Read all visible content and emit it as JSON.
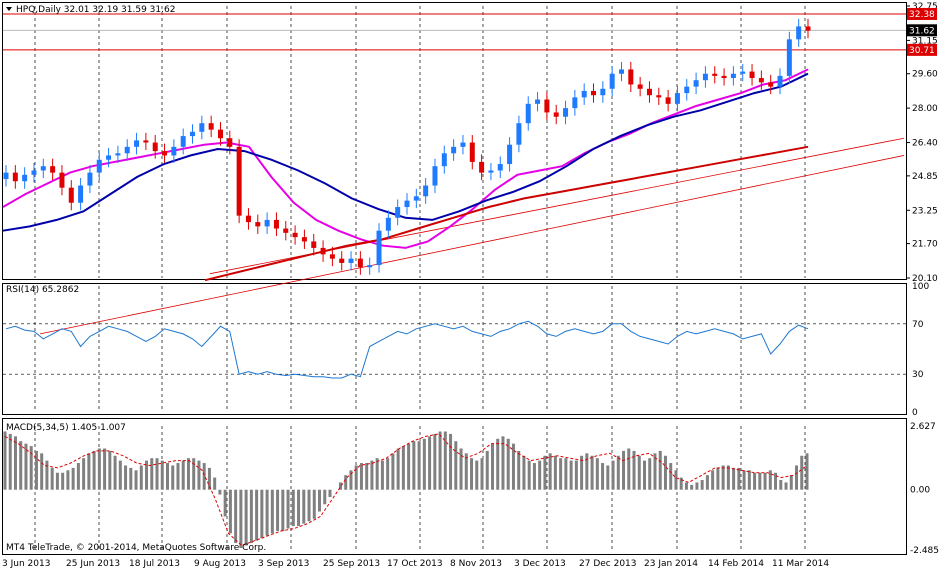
{
  "main": {
    "header": "HPQ,Daily  32.01 32.19 31.59 31.62",
    "y_ticks": [
      "32.75",
      "31.15",
      "29.60",
      "28.00",
      "26.40",
      "24.85",
      "23.25",
      "21.70",
      "20.10"
    ],
    "price_tags": [
      "32.38",
      "31.62",
      "30.71"
    ],
    "tag_colors": [
      "#dd0000",
      "#000000",
      "#dd0000"
    ]
  },
  "rsi": {
    "header": "RSI(14) 65.2862",
    "ticks": [
      "100",
      "70",
      "30",
      "0"
    ]
  },
  "macd": {
    "header": "MACD(5,34,5) 1.405 1.007",
    "ticks": [
      "2.627",
      "0.00",
      "-2.485"
    ]
  },
  "x_labels": [
    "3 Jun 2013",
    "25 Jun 2013",
    "18 Jul 2013",
    "9 Aug 2013",
    "3 Sep 2013",
    "25 Sep 2013",
    "17 Oct 2013",
    "8 Nov 2013",
    "3 Dec 2013",
    "27 Dec 2013",
    "23 Jan 2014",
    "14 Feb 2014",
    "11 Mar 2014"
  ],
  "copyright": "MT4 TeleTrade, © 2001-2014, MetaQuotes Software Corp.",
  "colors": {
    "up": "#1e7bff",
    "down": "#e00000",
    "ma_fast": "#e600e6",
    "ma_mid": "#0000aa",
    "ma_slow": "#cc0000",
    "rsi": "#1e78d0",
    "macd_bar": "#808080",
    "signal": "#dd0000"
  },
  "chart_data": [
    {
      "type": "candlestick",
      "title": "HPQ,Daily",
      "ylim": [
        20.1,
        32.75
      ],
      "x_ticks": [
        "3 Jun 2013",
        "25 Jun 2013",
        "18 Jul 2013",
        "9 Aug 2013",
        "3 Sep 2013",
        "25 Sep 2013",
        "17 Oct 2013",
        "8 Nov 2013",
        "3 Dec 2013",
        "27 Dec 2013",
        "23 Jan 2014",
        "14 Feb 2014",
        "11 Mar 2014"
      ],
      "close_path": [
        25.0,
        24.6,
        24.9,
        25.1,
        25.3,
        25.0,
        24.3,
        23.6,
        24.4,
        25.0,
        25.6,
        25.8,
        25.9,
        26.2,
        26.5,
        26.4,
        26.0,
        25.8,
        26.2,
        26.7,
        26.9,
        27.3,
        27.0,
        26.6,
        26.2,
        23.0,
        22.7,
        22.5,
        22.8,
        22.4,
        22.2,
        22.0,
        21.8,
        21.5,
        21.2,
        21.0,
        20.8,
        21.0,
        20.6,
        20.7,
        22.3,
        22.9,
        23.4,
        23.7,
        23.9,
        24.4,
        25.3,
        25.9,
        26.2,
        26.4,
        25.5,
        25.0,
        25.1,
        25.4,
        26.3,
        27.3,
        28.2,
        28.4,
        27.8,
        27.6,
        28.0,
        28.5,
        28.8,
        28.6,
        28.9,
        29.6,
        29.8,
        29.1,
        28.9,
        28.6,
        28.5,
        28.2,
        28.7,
        29.0,
        29.3,
        29.6,
        29.5,
        29.4,
        29.6,
        29.7,
        29.4,
        29.2,
        29.0,
        29.5,
        31.2,
        31.8,
        31.6
      ],
      "levels": [
        32.38,
        30.71
      ],
      "current": 31.62,
      "moving_averages": [
        {
          "name": "",
          "color": "#e600e6",
          "values": [
            23.4,
            24.0,
            24.5,
            25.0,
            25.3,
            25.5,
            25.7,
            25.9,
            26.1,
            26.3,
            26.4,
            26.2,
            24.8,
            23.6,
            22.8,
            22.3,
            21.9,
            21.6,
            21.5,
            21.8,
            22.5,
            23.3,
            24.2,
            24.9,
            25.1,
            25.3,
            25.9,
            26.4,
            26.8,
            27.3,
            27.7,
            28.1,
            28.4,
            28.7,
            29.1,
            29.3,
            29.8
          ]
        },
        {
          "name": "",
          "color": "#0000aa",
          "values": [
            22.3,
            22.5,
            22.8,
            23.2,
            24.0,
            24.8,
            25.4,
            25.8,
            26.1,
            26.0,
            25.6,
            25.1,
            24.5,
            23.8,
            23.3,
            22.9,
            22.8,
            23.2,
            23.7,
            24.1,
            24.6,
            25.3,
            26.1,
            26.7,
            27.2,
            27.6,
            27.9,
            28.3,
            28.7,
            29.0,
            29.6
          ]
        },
        {
          "name": "",
          "color": "#cc0000",
          "values": [
            20.0,
            20.4,
            20.8,
            21.2,
            21.6,
            21.9,
            22.4,
            22.9,
            23.4,
            23.8,
            24.1,
            24.4,
            24.7,
            25.0,
            25.3,
            25.6,
            25.9,
            26.2
          ]
        }
      ],
      "trendlines": [
        [
          19.6,
          26.6
        ],
        [
          17.5,
          25.8
        ]
      ]
    },
    {
      "type": "line",
      "title": "RSI(14) 65.2862",
      "ylim": [
        0,
        100
      ],
      "levels": [
        70,
        30
      ],
      "values": [
        66,
        68,
        65,
        64,
        58,
        62,
        66,
        64,
        52,
        60,
        64,
        68,
        66,
        64,
        60,
        56,
        60,
        66,
        64,
        62,
        58,
        52,
        60,
        68,
        64,
        30,
        32,
        30,
        32,
        30,
        29,
        30,
        29,
        28,
        28,
        27,
        27,
        30,
        28,
        52,
        56,
        60,
        64,
        62,
        66,
        68,
        70,
        68,
        66,
        68,
        64,
        62,
        60,
        64,
        66,
        70,
        72,
        68,
        62,
        60,
        64,
        66,
        64,
        62,
        64,
        70,
        70,
        64,
        60,
        58,
        56,
        54,
        60,
        64,
        62,
        64,
        66,
        64,
        62,
        58,
        60,
        62,
        46,
        54,
        64,
        69,
        66
      ]
    },
    {
      "type": "bar",
      "title": "MACD(5,34,5) 1.405 1.007",
      "ylim": [
        -2.485,
        2.627
      ],
      "values": [
        2.4,
        2.3,
        2.2,
        2.0,
        1.9,
        1.8,
        1.6,
        1.5,
        1.2,
        0.9,
        0.7,
        0.7,
        0.8,
        0.9,
        1.1,
        1.3,
        1.5,
        1.6,
        1.7,
        1.7,
        1.6,
        1.4,
        1.2,
        1.0,
        0.9,
        0.8,
        1.0,
        1.2,
        1.3,
        1.3,
        1.2,
        1.1,
        1.0,
        1.1,
        1.2,
        1.3,
        1.3,
        1.2,
        1.1,
        0.9,
        0.5,
        -0.2,
        -1.1,
        -1.8,
        -2.2,
        -2.4,
        -2.3,
        -2.2,
        -2.1,
        -2.0,
        -1.9,
        -1.8,
        -1.7,
        -1.7,
        -1.6,
        -1.5,
        -1.5,
        -1.4,
        -1.3,
        -1.2,
        -0.9,
        -0.6,
        -0.3,
        0.0,
        0.3,
        0.6,
        0.8,
        1.0,
        1.1,
        1.1,
        1.2,
        1.3,
        1.2,
        1.3,
        1.5,
        1.7,
        1.8,
        1.9,
        2.0,
        2.0,
        2.1,
        2.2,
        2.3,
        2.4,
        2.4,
        2.3,
        2.0,
        1.7,
        1.5,
        1.3,
        1.2,
        1.3,
        1.6,
        1.9,
        2.1,
        2.2,
        2.1,
        1.9,
        1.6,
        1.4,
        1.2,
        1.1,
        1.2,
        1.4,
        1.5,
        1.4,
        1.3,
        1.3,
        1.2,
        1.2,
        1.4,
        1.5,
        1.4,
        1.3,
        1.1,
        1.0,
        1.2,
        1.4,
        1.6,
        1.7,
        1.6,
        1.4,
        1.2,
        1.3,
        1.5,
        1.6,
        1.4,
        1.1,
        0.8,
        0.5,
        0.3,
        0.2,
        0.3,
        0.4,
        0.6,
        0.8,
        0.9,
        1.0,
        1.0,
        0.9,
        0.9,
        0.8,
        0.8,
        0.7,
        0.7,
        0.7,
        0.8,
        0.7,
        0.4,
        0.3,
        0.6,
        1.0,
        1.4,
        1.5
      ],
      "signal": [
        2.2,
        1.9,
        1.5,
        1.0,
        0.9,
        1.1,
        1.4,
        1.6,
        1.6,
        1.4,
        1.1,
        1.0,
        1.1,
        1.2,
        1.2,
        0.8,
        -0.4,
        -1.8,
        -2.3,
        -2.1,
        -1.9,
        -1.7,
        -1.6,
        -1.4,
        -1.1,
        -0.3,
        0.5,
        1.0,
        1.1,
        1.3,
        1.7,
        2.0,
        2.2,
        2.3,
        1.7,
        1.3,
        1.5,
        1.9,
        1.9,
        1.5,
        1.2,
        1.3,
        1.4,
        1.3,
        1.2,
        1.4,
        1.5,
        1.2,
        1.4,
        1.5,
        1.1,
        0.5,
        0.3,
        0.6,
        0.9,
        0.9,
        0.8,
        0.7,
        0.7,
        0.5,
        0.6,
        1.0
      ]
    }
  ]
}
